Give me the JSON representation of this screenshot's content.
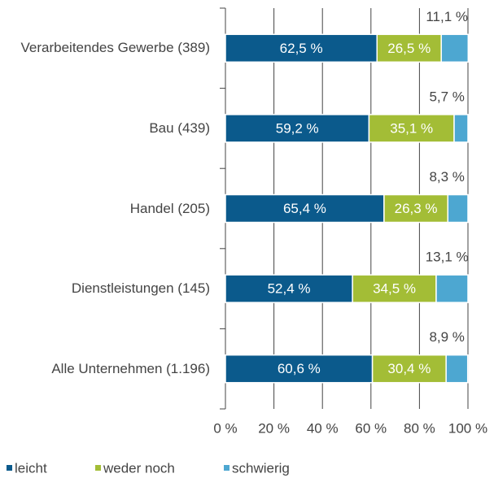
{
  "chart_data": {
    "type": "bar",
    "orientation": "horizontal",
    "stacked": true,
    "categories": [
      "Verarbeitendes Gewerbe (389)",
      "Bau (439)",
      "Handel (205)",
      "Dienstleistungen (145)",
      "Alle Unternehmen (1.196)"
    ],
    "series": [
      {
        "name": "leicht",
        "color": "#0b5a8c",
        "values": [
          62.5,
          59.2,
          65.4,
          52.4,
          60.6
        ],
        "value_labels": [
          "62,5 %",
          "59,2 %",
          "65,4 %",
          "52,4 %",
          "60,6 %"
        ]
      },
      {
        "name": "weder noch",
        "color": "#a3bd36",
        "values": [
          26.5,
          35.1,
          26.3,
          34.5,
          30.4
        ],
        "value_labels": [
          "26,5 %",
          "35,1 %",
          "26,3 %",
          "34,5 %",
          "30,4 %"
        ]
      },
      {
        "name": "schwierig",
        "color": "#4da7d1",
        "values": [
          11.1,
          5.7,
          8.3,
          13.1,
          8.9
        ],
        "value_labels": [
          "11,1 %",
          "5,7 %",
          "8,3 %",
          "13,1 %",
          "8,9 %"
        ]
      }
    ],
    "xlim": [
      0,
      100
    ],
    "xticks": [
      {
        "value": 0,
        "label": "0 %"
      },
      {
        "value": 20,
        "label": "20 %"
      },
      {
        "value": 40,
        "label": "40 %"
      },
      {
        "value": 60,
        "label": "60 %"
      },
      {
        "value": 80,
        "label": "80 %"
      },
      {
        "value": 100,
        "label": "100 %"
      }
    ],
    "grid": true,
    "legend": "bottom"
  }
}
